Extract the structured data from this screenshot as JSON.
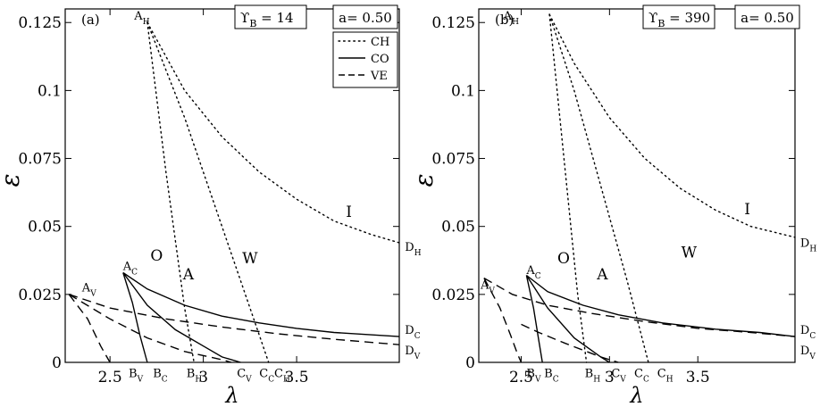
{
  "chart_data": [
    {
      "type": "line",
      "panel_label": "(a)",
      "xlabel": "λ",
      "ylabel": "ε",
      "xlim": [
        2.26,
        4.05
      ],
      "ylim": [
        0,
        0.13
      ],
      "xticks": [
        2.5,
        3,
        3.5
      ],
      "yticks": [
        0,
        0.025,
        0.05,
        0.075,
        0.1,
        0.125
      ],
      "ytick_labels": [
        "0",
        "0.025",
        "0.05",
        "0.075",
        "0.1",
        "0.125"
      ],
      "grid": false,
      "legend": {
        "placement": "top-right",
        "entries": [
          {
            "label": "CH",
            "style": "dotted"
          },
          {
            "label": "CO",
            "style": "solid"
          },
          {
            "label": "VE",
            "style": "dashed"
          }
        ]
      },
      "annotations": {
        "upsilon_box": {
          "prefix": "ϒ",
          "subscript": "B",
          "text": " = 14"
        },
        "a_box": "a= 0.50"
      },
      "regions": [
        {
          "label": "O",
          "x": 2.75,
          "y": 0.0375
        },
        {
          "label": "A",
          "x": 2.92,
          "y": 0.0305
        },
        {
          "label": "W",
          "x": 3.25,
          "y": 0.0365
        },
        {
          "label": "I",
          "x": 3.78,
          "y": 0.0535
        }
      ],
      "point_labels": [
        {
          "base": "A",
          "sub": "H",
          "x": 2.63,
          "y": 0.128
        },
        {
          "base": "A",
          "sub": "C",
          "x": 2.57,
          "y": 0.036
        },
        {
          "base": "A",
          "sub": "V",
          "x": 2.35,
          "y": 0.028
        },
        {
          "base": "B",
          "sub": "V",
          "x": 2.6,
          "y": -0.0035
        },
        {
          "base": "B",
          "sub": "C",
          "x": 2.73,
          "y": -0.0035
        },
        {
          "base": "B",
          "sub": "H",
          "x": 2.91,
          "y": -0.0035
        },
        {
          "base": "C",
          "sub": "V",
          "x": 3.18,
          "y": -0.0035
        },
        {
          "base": "C",
          "sub": "C",
          "x": 3.3,
          "y": -0.0035
        },
        {
          "base": "C",
          "sub": "H",
          "x": 3.38,
          "y": -0.0035
        },
        {
          "base": "D",
          "sub": "H",
          "x": 4.08,
          "y": 0.043
        },
        {
          "base": "D",
          "sub": "C",
          "x": 4.08,
          "y": 0.0125
        },
        {
          "base": "D",
          "sub": "V",
          "x": 4.08,
          "y": 0.005
        }
      ],
      "series": [
        {
          "kind": "CH",
          "style": "dotted",
          "x": [
            2.7,
            2.8,
            2.9,
            2.95
          ],
          "y": [
            0.125,
            0.07,
            0.02,
            0.0
          ]
        },
        {
          "kind": "CH",
          "style": "dotted",
          "x": [
            2.7,
            2.9,
            3.1,
            3.3,
            3.35
          ],
          "y": [
            0.125,
            0.09,
            0.05,
            0.01,
            0.0
          ]
        },
        {
          "kind": "CH",
          "style": "dotted",
          "x": [
            2.7,
            2.9,
            3.1,
            3.3,
            3.5,
            3.7,
            3.9,
            4.05
          ],
          "y": [
            0.125,
            0.1,
            0.083,
            0.07,
            0.06,
            0.052,
            0.047,
            0.044
          ]
        },
        {
          "kind": "CO",
          "style": "solid",
          "x": [
            2.57,
            2.62,
            2.66,
            2.7
          ],
          "y": [
            0.033,
            0.022,
            0.01,
            0.0
          ]
        },
        {
          "kind": "CO",
          "style": "solid",
          "x": [
            2.57,
            2.7,
            2.85,
            3.0,
            3.1,
            3.2
          ],
          "y": [
            0.033,
            0.021,
            0.012,
            0.006,
            0.002,
            0.0
          ]
        },
        {
          "kind": "CO",
          "style": "solid",
          "x": [
            2.57,
            2.7,
            2.9,
            3.1,
            3.3,
            3.5,
            3.7,
            4.05
          ],
          "y": [
            0.033,
            0.027,
            0.021,
            0.017,
            0.0145,
            0.0125,
            0.011,
            0.0095
          ]
        },
        {
          "kind": "VE",
          "style": "dashed",
          "x": [
            2.28,
            2.38,
            2.45,
            2.5
          ],
          "y": [
            0.025,
            0.016,
            0.006,
            0.0
          ]
        },
        {
          "kind": "VE",
          "style": "dashed",
          "x": [
            2.28,
            2.5,
            2.7,
            2.9,
            3.1,
            3.15
          ],
          "y": [
            0.025,
            0.016,
            0.009,
            0.004,
            0.001,
            0.0
          ]
        },
        {
          "kind": "VE",
          "style": "dashed",
          "x": [
            2.28,
            2.5,
            2.8,
            3.1,
            3.4,
            3.7,
            4.05
          ],
          "y": [
            0.025,
            0.02,
            0.016,
            0.013,
            0.0105,
            0.0085,
            0.0065
          ]
        }
      ]
    },
    {
      "type": "line",
      "panel_label": "(b)",
      "xlabel": "λ",
      "ylabel": "ε",
      "xlim": [
        2.26,
        4.05
      ],
      "ylim": [
        0,
        0.13
      ],
      "xticks": [
        2.5,
        3,
        3.5
      ],
      "yticks": [
        0,
        0.025,
        0.05,
        0.075,
        0.1,
        0.125
      ],
      "ytick_labels": [
        "0",
        "0.025",
        "0.05",
        "0.075",
        "0.1",
        "0.125"
      ],
      "grid": false,
      "annotations": {
        "upsilon_box": {
          "prefix": "ϒ",
          "subscript": "B",
          "text": " = 390"
        },
        "a_box": "a= 0.50"
      },
      "regions": [
        {
          "label": "O",
          "x": 2.74,
          "y": 0.0365
        },
        {
          "label": "A",
          "x": 2.96,
          "y": 0.0305
        },
        {
          "label": "W",
          "x": 3.45,
          "y": 0.0385
        },
        {
          "label": "I",
          "x": 3.78,
          "y": 0.0545
        }
      ],
      "point_labels": [
        {
          "base": "A",
          "sub": "H",
          "x": 2.4,
          "y": 0.128
        },
        {
          "base": "A",
          "sub": "C",
          "x": 2.53,
          "y": 0.0345
        },
        {
          "base": "A",
          "sub": "V",
          "x": 2.27,
          "y": 0.029
        },
        {
          "base": "B",
          "sub": "V",
          "x": 2.53,
          "y": -0.0035
        },
        {
          "base": "B",
          "sub": "C",
          "x": 2.63,
          "y": -0.0035
        },
        {
          "base": "B",
          "sub": "H",
          "x": 2.86,
          "y": -0.0035
        },
        {
          "base": "C",
          "sub": "V",
          "x": 3.01,
          "y": -0.0035
        },
        {
          "base": "C",
          "sub": "C",
          "x": 3.14,
          "y": -0.0035
        },
        {
          "base": "C",
          "sub": "H",
          "x": 3.27,
          "y": -0.0035
        },
        {
          "base": "D",
          "sub": "H",
          "x": 4.08,
          "y": 0.0445
        },
        {
          "base": "D",
          "sub": "C",
          "x": 4.08,
          "y": 0.0125
        },
        {
          "base": "D",
          "sub": "V",
          "x": 4.08,
          "y": 0.005
        }
      ],
      "series": [
        {
          "kind": "CH",
          "style": "dotted",
          "x": [
            2.66,
            2.75,
            2.82,
            2.87
          ],
          "y": [
            0.128,
            0.07,
            0.025,
            0.0
          ]
        },
        {
          "kind": "CH",
          "style": "dotted",
          "x": [
            2.66,
            2.8,
            2.95,
            3.1,
            3.22
          ],
          "y": [
            0.128,
            0.1,
            0.065,
            0.03,
            0.0
          ]
        },
        {
          "kind": "CH",
          "style": "dotted",
          "x": [
            2.66,
            2.8,
            3.0,
            3.2,
            3.4,
            3.6,
            3.8,
            4.05
          ],
          "y": [
            0.128,
            0.11,
            0.09,
            0.075,
            0.064,
            0.056,
            0.05,
            0.046
          ]
        },
        {
          "kind": "CO",
          "style": "solid",
          "x": [
            2.53,
            2.57,
            2.6,
            2.62
          ],
          "y": [
            0.032,
            0.02,
            0.008,
            0.0
          ]
        },
        {
          "kind": "CO",
          "style": "solid",
          "x": [
            2.53,
            2.65,
            2.8,
            2.95,
            3.0
          ],
          "y": [
            0.032,
            0.02,
            0.009,
            0.002,
            0.0
          ]
        },
        {
          "kind": "CO",
          "style": "solid",
          "x": [
            2.53,
            2.65,
            2.85,
            3.05,
            3.3,
            3.6,
            3.85,
            4.05
          ],
          "y": [
            0.032,
            0.026,
            0.021,
            0.0175,
            0.0145,
            0.0122,
            0.011,
            0.0095
          ]
        },
        {
          "kind": "VE",
          "style": "dashed",
          "x": [
            2.29,
            2.38,
            2.44,
            2.48,
            2.5
          ],
          "y": [
            0.031,
            0.02,
            0.01,
            0.003,
            0.0
          ]
        },
        {
          "kind": "VE",
          "style": "dashed",
          "x": [
            2.5,
            2.6,
            2.75,
            2.95,
            3.05
          ],
          "y": [
            0.014,
            0.011,
            0.007,
            0.002,
            0.0
          ]
        },
        {
          "kind": "VE",
          "style": "dashed",
          "x": [
            2.29,
            2.45,
            2.65,
            2.9,
            3.2,
            3.5,
            3.8,
            4.05
          ],
          "y": [
            0.031,
            0.025,
            0.021,
            0.018,
            0.015,
            0.0125,
            0.011,
            0.0095
          ]
        }
      ]
    }
  ]
}
